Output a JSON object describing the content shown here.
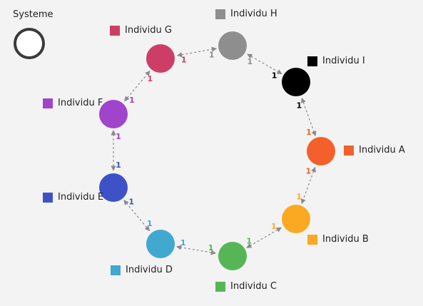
{
  "system": {
    "label": "Systeme"
  },
  "nodes": [
    {
      "id": "A",
      "label": "Individu A",
      "color": "#f4602c"
    },
    {
      "id": "B",
      "label": "Individu B",
      "color": "#fba823"
    },
    {
      "id": "C",
      "label": "Individu C",
      "color": "#56b656"
    },
    {
      "id": "D",
      "label": "Individu D",
      "color": "#41a8d0"
    },
    {
      "id": "E",
      "label": "Individu E",
      "color": "#3e52c8"
    },
    {
      "id": "F",
      "label": "Individu F",
      "color": "#a144cc"
    },
    {
      "id": "G",
      "label": "Individu G",
      "color": "#cd3e66"
    },
    {
      "id": "H",
      "label": "Individu H",
      "color": "#8e8e8e"
    },
    {
      "id": "I",
      "label": "Individu I",
      "color": "#000000"
    }
  ],
  "links": [
    {
      "from": "I",
      "to": "A",
      "from_label": "1",
      "to_label": "1"
    },
    {
      "from": "A",
      "to": "B",
      "from_label": "1",
      "to_label": "1"
    },
    {
      "from": "B",
      "to": "C",
      "from_label": "1",
      "to_label": "1"
    },
    {
      "from": "C",
      "to": "D",
      "from_label": "1",
      "to_label": "1"
    },
    {
      "from": "D",
      "to": "E",
      "from_label": "1",
      "to_label": "1"
    },
    {
      "from": "E",
      "to": "F",
      "from_label": "1",
      "to_label": "1"
    },
    {
      "from": "F",
      "to": "G",
      "from_label": "1",
      "to_label": "1"
    },
    {
      "from": "G",
      "to": "H",
      "from_label": "1",
      "to_label": "1"
    },
    {
      "from": "H",
      "to": "I",
      "from_label": "1",
      "to_label": "1"
    }
  ]
}
